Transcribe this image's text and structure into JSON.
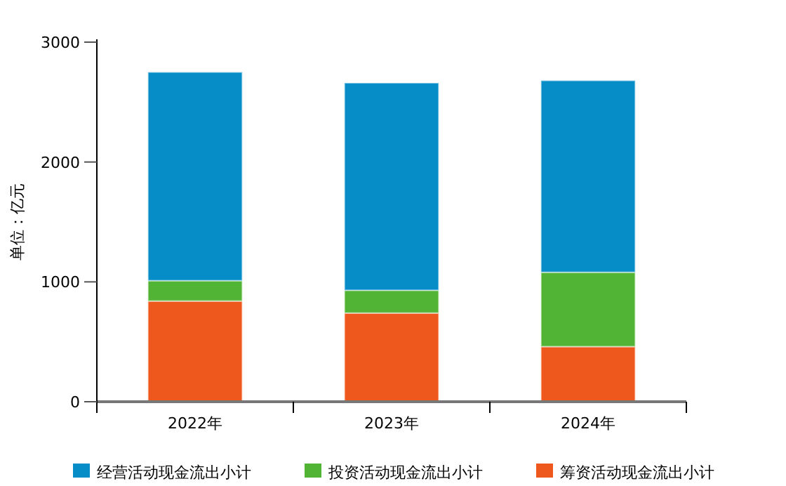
{
  "chart_data": {
    "type": "bar",
    "stacked": true,
    "ylabel": "单位：亿元",
    "categories": [
      "2022年",
      "2023年",
      "2024年"
    ],
    "series": [
      {
        "name": "筹资活动现金流出小计",
        "color": "#ee581d",
        "values": [
          840,
          740,
          460
        ]
      },
      {
        "name": "投资活动现金流出小计",
        "color": "#52b434",
        "values": [
          170,
          190,
          620
        ]
      },
      {
        "name": "经营活动现金流出小计",
        "color": "#068dc8",
        "values": [
          1740,
          1730,
          1600
        ]
      }
    ],
    "ylim": [
      0,
      3000
    ],
    "yticks": [
      0,
      1000,
      2000,
      3000
    ],
    "legend": "bottom"
  }
}
